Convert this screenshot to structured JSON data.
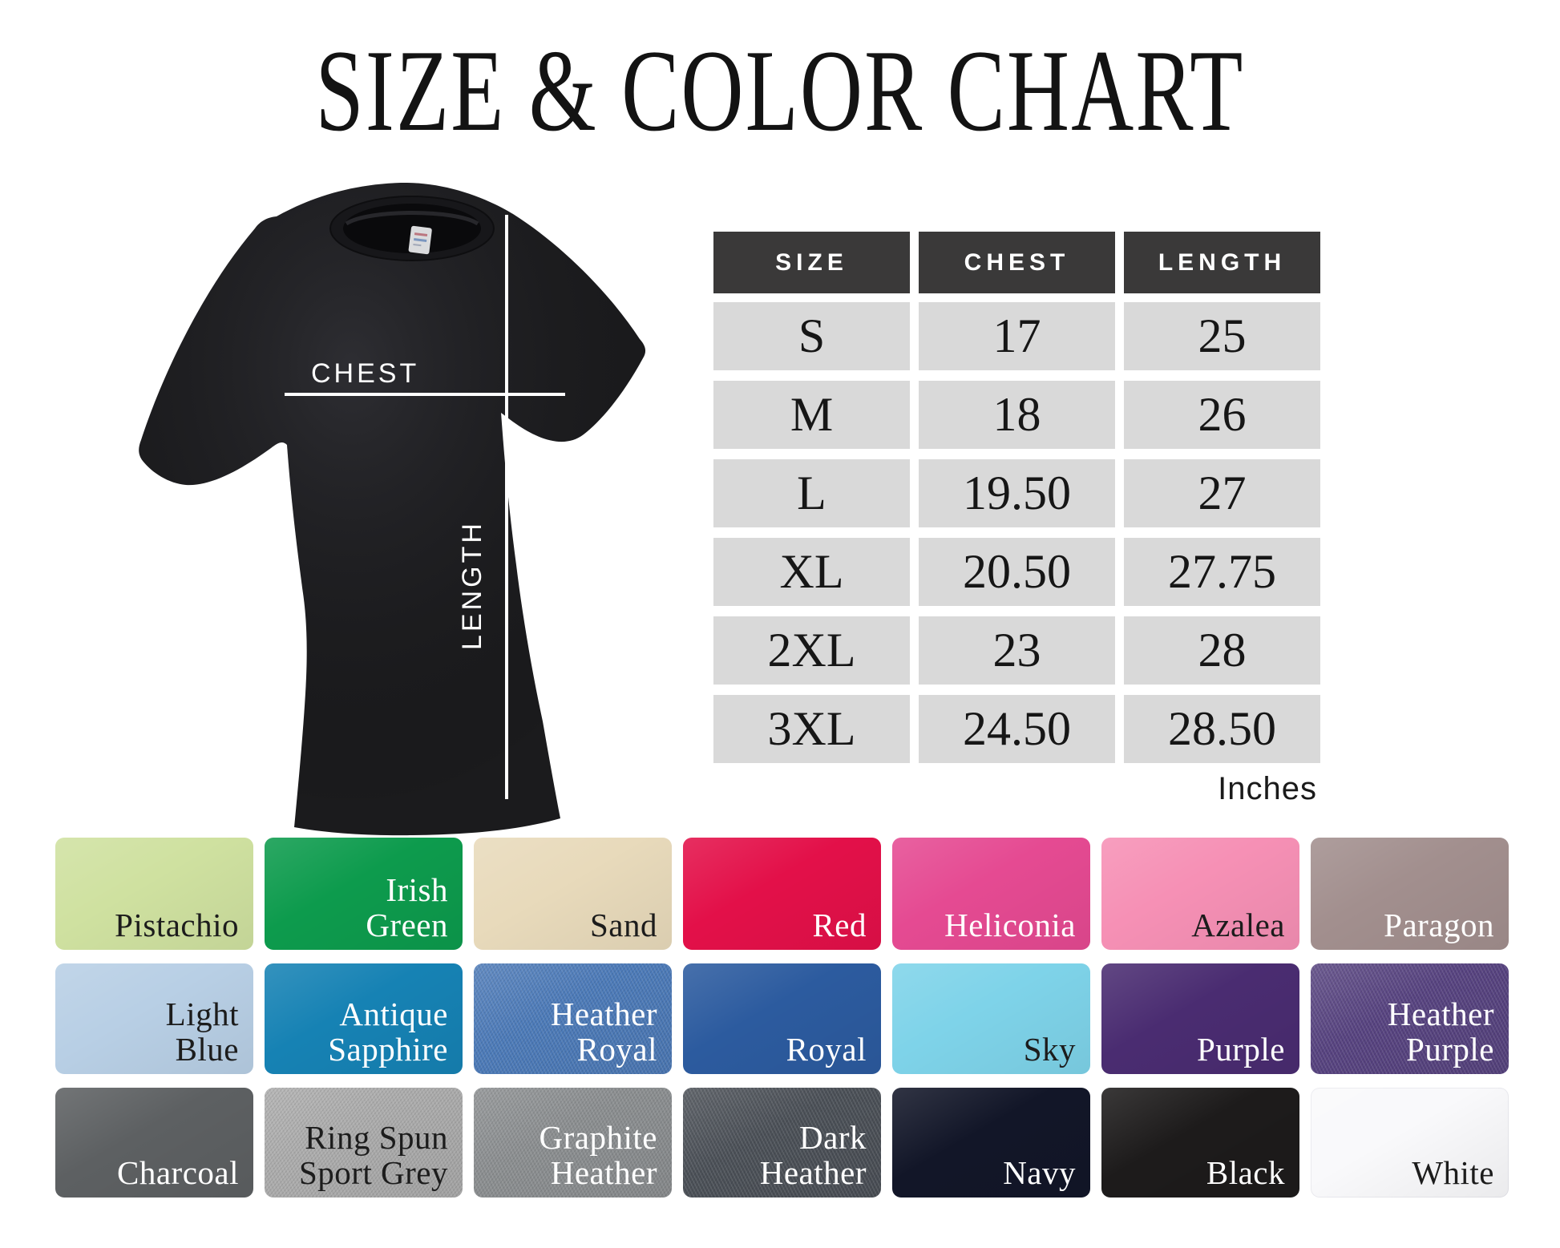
{
  "title": "SIZE & COLOR CHART",
  "shirt_diagram": {
    "chest_label": "CHEST",
    "length_label": "LENGTH",
    "shirt_color": "#1b1b1d",
    "line_color": "#ffffff"
  },
  "size_table": {
    "headers": [
      "SIZE",
      "CHEST",
      "LENGTH"
    ],
    "rows": [
      {
        "size": "S",
        "chest": "17",
        "length": "25"
      },
      {
        "size": "M",
        "chest": "18",
        "length": "26"
      },
      {
        "size": "L",
        "chest": "19.50",
        "length": "27"
      },
      {
        "size": "XL",
        "chest": "20.50",
        "length": "27.75"
      },
      {
        "size": "2XL",
        "chest": "23",
        "length": "28"
      },
      {
        "size": "3XL",
        "chest": "24.50",
        "length": "28.50"
      }
    ],
    "unit_label": "Inches",
    "header_bg": "#3a3939",
    "header_text": "#ffffff",
    "row_bg": "#d9d9d9",
    "cell_text": "#161616"
  },
  "color_chart": {
    "rows": [
      [
        {
          "name": "Pistachio",
          "color": "#cfe1a0",
          "text": "#1c1c1c"
        },
        {
          "name": "Irish\nGreen",
          "color": "#0d9b4d",
          "text": "#ffffff"
        },
        {
          "name": "Sand",
          "color": "#e8dabb",
          "text": "#1c1c1c"
        },
        {
          "name": "Red",
          "color": "#e31049",
          "text": "#ffffff"
        },
        {
          "name": "Heliconia",
          "color": "#e54a92",
          "text": "#ffffff"
        },
        {
          "name": "Azalea",
          "color": "#f690b5",
          "text": "#1c1c1c"
        },
        {
          "name": "Paragon",
          "color": "#a28f8e",
          "text": "#ffffff"
        }
      ],
      [
        {
          "name": "Light\nBlue",
          "color": "#b8cfe5",
          "text": "#1c1c1c"
        },
        {
          "name": "Antique\nSapphire",
          "color": "#1682b4",
          "text": "#ffffff"
        },
        {
          "name": "Heather\nRoyal",
          "color": "#4c7ab8",
          "text": "#ffffff",
          "heather": true
        },
        {
          "name": "Royal",
          "color": "#2c5b9f",
          "text": "#ffffff"
        },
        {
          "name": "Sky",
          "color": "#7ed3e9",
          "text": "#1c1c1c"
        },
        {
          "name": "Purple",
          "color": "#4a2c71",
          "text": "#ffffff"
        },
        {
          "name": "Heather\nPurple",
          "color": "#574380",
          "text": "#ffffff",
          "heather": true
        }
      ],
      [
        {
          "name": "Charcoal",
          "color": "#5d6062",
          "text": "#ffffff"
        },
        {
          "name": "Ring Spun\nSport Grey",
          "color": "#ababab",
          "text": "#1c1c1c",
          "heather": true
        },
        {
          "name": "Graphite\nHeather",
          "color": "#8b8e90",
          "text": "#ffffff",
          "heather": true
        },
        {
          "name": "Dark\nHeather",
          "color": "#4b5057",
          "text": "#ffffff",
          "heather": true
        },
        {
          "name": "Navy",
          "color": "#121628",
          "text": "#ffffff"
        },
        {
          "name": "Black",
          "color": "#1d1b1b",
          "text": "#ffffff"
        },
        {
          "name": "White",
          "color": "#f9f9fb",
          "text": "#1c1c1c",
          "is_white": true
        }
      ]
    ]
  }
}
